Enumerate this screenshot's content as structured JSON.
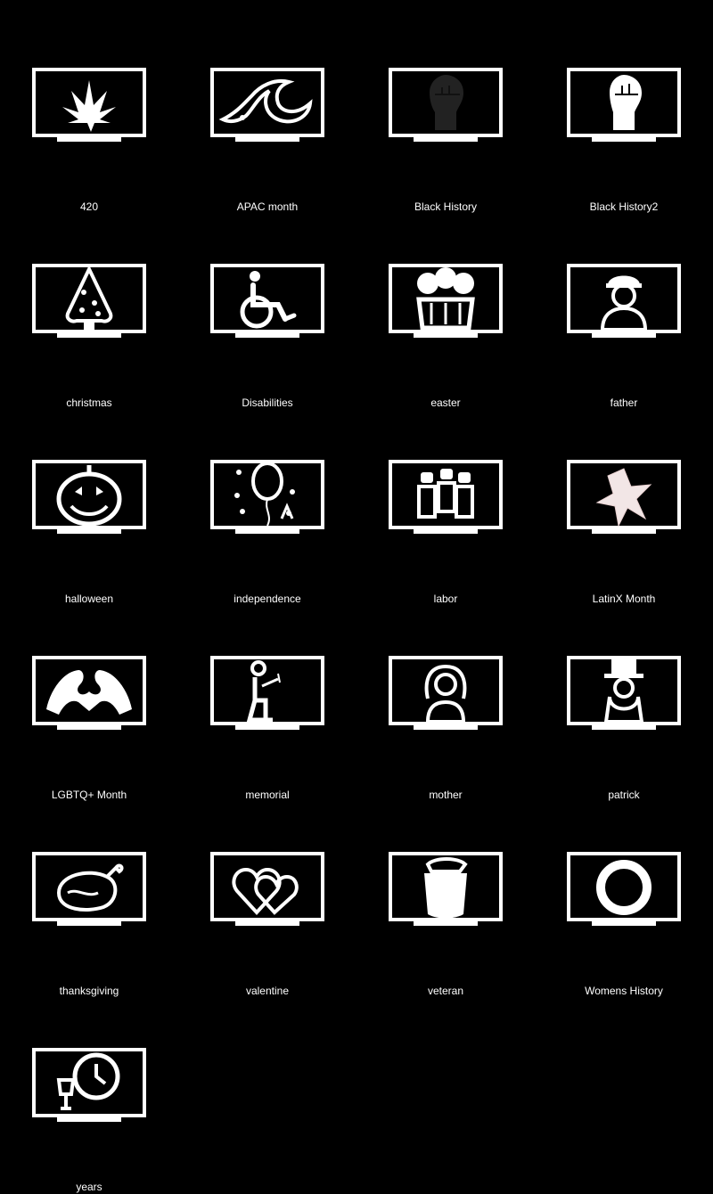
{
  "colors": {
    "background": "#000000",
    "foreground": "#ffffff",
    "black_icon_fill": "#222222",
    "latinx_tint": "#f2e6e6"
  },
  "icons": [
    {
      "label": "420",
      "icon": "cannabis-leaf"
    },
    {
      "label": "APAC month",
      "icon": "wave"
    },
    {
      "label": "Black History",
      "icon": "raised-fist-dark"
    },
    {
      "label": "Black History2",
      "icon": "raised-fist"
    },
    {
      "label": "christmas",
      "icon": "christmas-tree"
    },
    {
      "label": "Disabilities",
      "icon": "wheelchair"
    },
    {
      "label": "easter",
      "icon": "easter-basket"
    },
    {
      "label": "father",
      "icon": "man-with-cap"
    },
    {
      "label": "halloween",
      "icon": "jack-o-lantern"
    },
    {
      "label": "independence",
      "icon": "fireworks-balloon"
    },
    {
      "label": "labor",
      "icon": "workers"
    },
    {
      "label": "LatinX Month",
      "icon": "star-figure"
    },
    {
      "label": "LGBTQ+ Month",
      "icon": "heart-hands"
    },
    {
      "label": "memorial",
      "icon": "kneeling-soldier"
    },
    {
      "label": "mother",
      "icon": "woman"
    },
    {
      "label": "patrick",
      "icon": "leprechaun"
    },
    {
      "label": "thanksgiving",
      "icon": "roast-turkey"
    },
    {
      "label": "valentine",
      "icon": "two-hearts"
    },
    {
      "label": "veteran",
      "icon": "military-beret"
    },
    {
      "label": "Womens History",
      "icon": "venus-ring"
    },
    {
      "label": "years",
      "icon": "clock-and-glass"
    }
  ]
}
